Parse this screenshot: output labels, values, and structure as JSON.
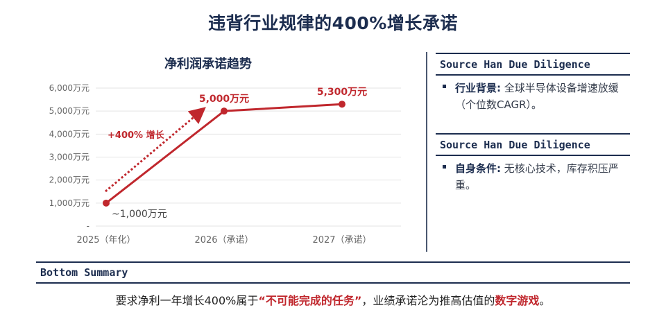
{
  "page": {
    "title": "违背行业规律的400%增长承诺"
  },
  "chart_data": {
    "type": "line",
    "title": "净利润承诺趋势",
    "categories": [
      "2025（年化）",
      "2026（承诺）",
      "2027（承诺）"
    ],
    "series": [
      {
        "values": [
          1000,
          5000,
          5300
        ]
      }
    ],
    "yticks": [
      "-",
      "1,000万元",
      "2,000万元",
      "3,000万元",
      "4,000万元",
      "5,000万元",
      "6,000万元"
    ],
    "ylim": [
      0,
      6000
    ],
    "data_labels": [
      "~1,000万元",
      "5,000万元",
      "5,300万元"
    ],
    "annotation": "+400% 增长",
    "grid": true,
    "colors": {
      "line": "#c0272d",
      "grid": "#e3e3e3",
      "axis_text": "#666666"
    }
  },
  "sidebar": {
    "sections": [
      {
        "header": "Source Han Due Diligence",
        "key": "行业背景:",
        "text": " 全球半导体设备增速放缓（个位数CAGR）。"
      },
      {
        "header": "Source Han Due Diligence",
        "key": "自身条件:",
        "text": " 无核心技术，库存积压严重。"
      }
    ]
  },
  "bottom": {
    "header": "Bottom Summary",
    "text_1": "要求净利一年增长400%属于",
    "highlight_1": "“不可能完成的任务”",
    "text_2": "，业绩承诺沦为推高估值的",
    "highlight_2": "数字游戏",
    "text_3": "。"
  }
}
